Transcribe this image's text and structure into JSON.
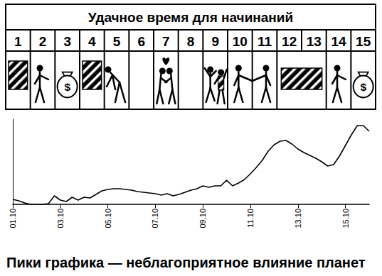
{
  "chart_data": {
    "type": "line",
    "title": "Пики графика — неблагоприятное влияние планет",
    "categories": [
      "01.10",
      null,
      null,
      null,
      null,
      null,
      null,
      null,
      "03.10",
      null,
      null,
      null,
      null,
      null,
      null,
      null,
      "05.10",
      null,
      null,
      null,
      null,
      null,
      null,
      null,
      "07.10",
      null,
      null,
      null,
      null,
      null,
      null,
      null,
      "09.10",
      null,
      null,
      null,
      null,
      null,
      null,
      null,
      "11.10",
      null,
      null,
      null,
      null,
      null,
      null,
      null,
      "13.10",
      null,
      null,
      null,
      null,
      null,
      null,
      null,
      "15.10",
      null,
      null,
      null,
      null
    ],
    "values": [
      7,
      5,
      2,
      0,
      0,
      0,
      1,
      12,
      6,
      4,
      10,
      6,
      10,
      9,
      14,
      19,
      21,
      22,
      22,
      21,
      20,
      18,
      17,
      16,
      15,
      13,
      15,
      12,
      14,
      17,
      20,
      22,
      26,
      24,
      26,
      26,
      34,
      26,
      30,
      35,
      43,
      52,
      62,
      75,
      84,
      89,
      90,
      85,
      78,
      73,
      69,
      65,
      60,
      54,
      56,
      68,
      83,
      98,
      111,
      111,
      103
    ],
    "color": "#000000",
    "ylim": [
      0,
      120
    ],
    "grid": false,
    "tick_labels": "x"
  },
  "table": {
    "title": "Удачное время для начинаний",
    "days": [
      1,
      2,
      3,
      4,
      5,
      6,
      7,
      8,
      9,
      10,
      11,
      12,
      13,
      14,
      15
    ],
    "currency": "$"
  }
}
